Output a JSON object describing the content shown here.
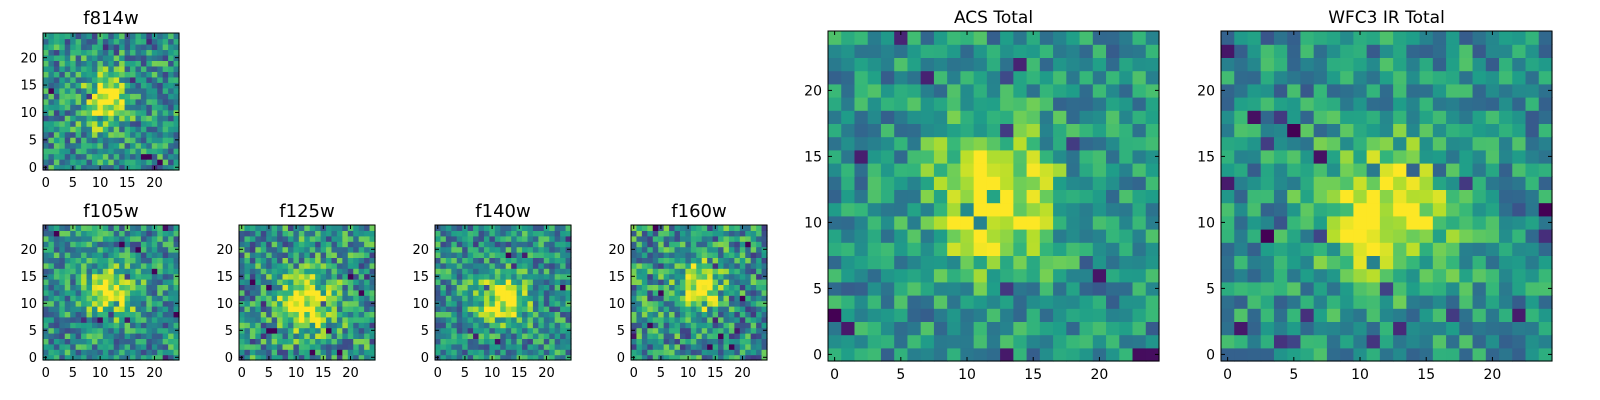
{
  "chart_data": [
    {
      "type": "heatmap",
      "title": "f814w",
      "xticks": [
        0,
        5,
        10,
        15,
        20
      ],
      "yticks": [
        0,
        5,
        10,
        15,
        20
      ],
      "xlim": [
        -0.5,
        24.5
      ],
      "ylim": [
        -0.5,
        24.5
      ],
      "grid": [
        25,
        25
      ],
      "peak": [
        11,
        12
      ],
      "spread": [
        2.6,
        3.4
      ],
      "noise": 0.3,
      "seed": 7
    },
    {
      "type": "heatmap",
      "title": "f105w",
      "xticks": [
        0,
        5,
        10,
        15,
        20
      ],
      "yticks": [
        0,
        5,
        10,
        15,
        20
      ],
      "xlim": [
        -0.5,
        24.5
      ],
      "ylim": [
        -0.5,
        24.5
      ],
      "grid": [
        25,
        25
      ],
      "peak": [
        12,
        12
      ],
      "spread": [
        3.2,
        3.2
      ],
      "noise": 0.28,
      "seed": 11
    },
    {
      "type": "heatmap",
      "title": "f125w",
      "xticks": [
        0,
        5,
        10,
        15,
        20
      ],
      "yticks": [
        0,
        5,
        10,
        15,
        20
      ],
      "xlim": [
        -0.5,
        24.5
      ],
      "ylim": [
        -0.5,
        24.5
      ],
      "grid": [
        25,
        25
      ],
      "peak": [
        12,
        10
      ],
      "spread": [
        3.4,
        3.6
      ],
      "noise": 0.32,
      "seed": 19
    },
    {
      "type": "heatmap",
      "title": "f140w",
      "xticks": [
        0,
        5,
        10,
        15,
        20
      ],
      "yticks": [
        0,
        5,
        10,
        15,
        20
      ],
      "xlim": [
        -0.5,
        24.5
      ],
      "ylim": [
        -0.5,
        24.5
      ],
      "grid": [
        25,
        25
      ],
      "peak": [
        12,
        11
      ],
      "spread": [
        3.2,
        3.0
      ],
      "noise": 0.28,
      "seed": 23
    },
    {
      "type": "heatmap",
      "title": "f160w",
      "xticks": [
        0,
        5,
        10,
        15,
        20
      ],
      "yticks": [
        0,
        5,
        10,
        15,
        20
      ],
      "xlim": [
        -0.5,
        24.5
      ],
      "ylim": [
        -0.5,
        24.5
      ],
      "grid": [
        25,
        25
      ],
      "peak": [
        12,
        13
      ],
      "spread": [
        2.4,
        3.0
      ],
      "noise": 0.33,
      "seed": 31
    },
    {
      "type": "heatmap",
      "title": "ACS Total",
      "xticks": [
        0,
        5,
        10,
        15,
        20
      ],
      "yticks": [
        0,
        5,
        10,
        15,
        20
      ],
      "xlim": [
        -0.5,
        24.5
      ],
      "ylim": [
        -0.5,
        24.5
      ],
      "grid": [
        25,
        25
      ],
      "peak": [
        12,
        12
      ],
      "spread": [
        3.2,
        4.0
      ],
      "noise": 0.22,
      "seed": 41
    },
    {
      "type": "heatmap",
      "title": "WFC3 IR Total",
      "xticks": [
        0,
        5,
        10,
        15,
        20
      ],
      "yticks": [
        0,
        5,
        10,
        15,
        20
      ],
      "xlim": [
        -0.5,
        24.5
      ],
      "ylim": [
        -0.5,
        24.5
      ],
      "grid": [
        25,
        25
      ],
      "peak": [
        12,
        11
      ],
      "spread": [
        3.6,
        3.6
      ],
      "noise": 0.22,
      "seed": 53
    }
  ],
  "colormap": {
    "name": "viridis",
    "stops": [
      "#440154",
      "#482878",
      "#3e4989",
      "#31688e",
      "#26828e",
      "#1f9e89",
      "#35b779",
      "#6ece58",
      "#b5de2b",
      "#fde725"
    ]
  }
}
